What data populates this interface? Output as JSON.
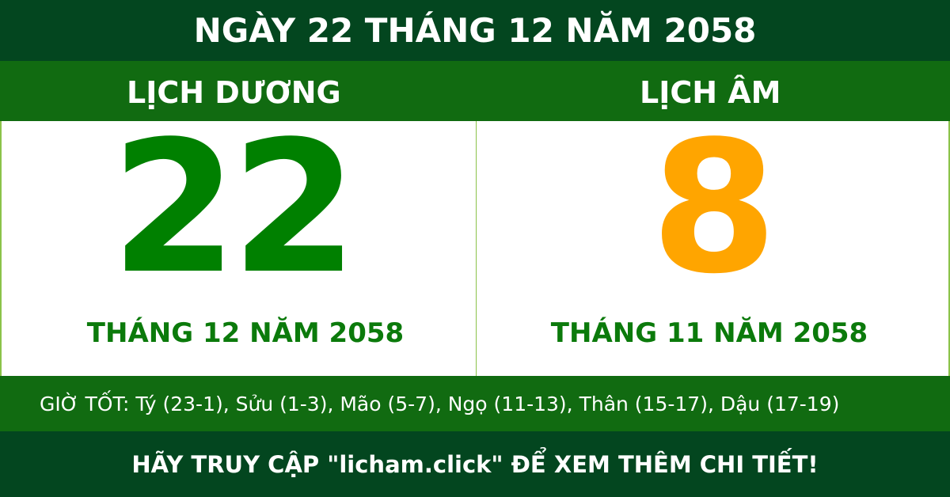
{
  "header": {
    "title": "NGÀY 22 THÁNG 12 NĂM 2058"
  },
  "solar": {
    "label": "LỊCH DƯƠNG",
    "day": "22",
    "month_year": "THÁNG 12 NĂM 2058",
    "color": "#008000"
  },
  "lunar": {
    "label": "LỊCH ÂM",
    "day": "8",
    "month_year": "THÁNG 11 NĂM 2058",
    "color": "#ffa500"
  },
  "good_hours": "GIỜ TỐT: Tý (23-1), Sửu (1-3), Mão (5-7), Ngọ (11-13), Thân (15-17), Dậu (17-19)",
  "footer": "HÃY TRUY CẬP \"licham.click\" ĐỂ XEM THÊM CHI TIẾT!"
}
